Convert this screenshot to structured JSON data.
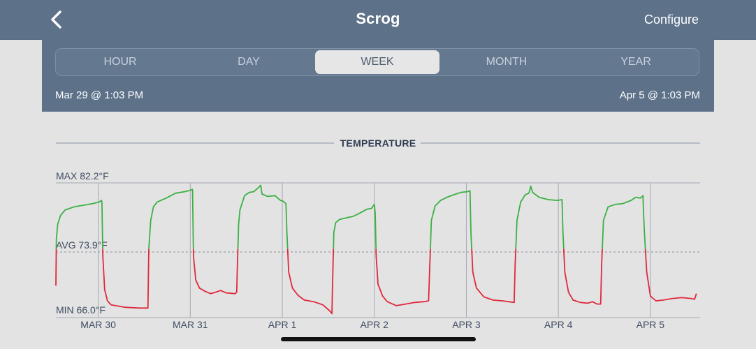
{
  "nav": {
    "title": "Scrog",
    "configure_label": "Configure",
    "back_icon": "chevron-left-icon"
  },
  "range": {
    "options": [
      "HOUR",
      "DAY",
      "WEEK",
      "MONTH",
      "YEAR"
    ],
    "selected": "WEEK",
    "start_label": "Mar 29 @ 1:03 PM",
    "end_label": "Apr 5 @ 1:03 PM"
  },
  "colors": {
    "header": "#5d7189",
    "above_avg_line": "#3cb043",
    "below_avg_line": "#e0283c",
    "background": "#e3e3e3"
  },
  "chart_data": {
    "type": "line",
    "title": "TEMPERATURE",
    "unit": "°F",
    "max_label": "MAX 82.2°F",
    "avg_label": "AVG 73.9°F",
    "min_label": "MIN 66.0°F",
    "ylim": [
      65.3,
      82.2
    ],
    "avg": 73.9,
    "x_ticks": [
      "MAR 30",
      "MAR 31",
      "APR 1",
      "APR 2",
      "APR 3",
      "APR 4",
      "APR 5"
    ],
    "x_range_days": [
      0,
      7
    ],
    "tick_positions_days": [
      0.46,
      1.46,
      2.46,
      3.46,
      4.46,
      5.46,
      6.46
    ],
    "series": [
      {
        "points": [
          [
            0.0,
            69.3
          ],
          [
            0.005,
            75.2
          ],
          [
            0.02,
            77.0
          ],
          [
            0.05,
            78.1
          ],
          [
            0.1,
            78.8
          ],
          [
            0.15,
            79.0
          ],
          [
            0.2,
            79.2
          ],
          [
            0.3,
            79.4
          ],
          [
            0.4,
            79.6
          ],
          [
            0.47,
            79.8
          ],
          [
            0.495,
            80.0
          ],
          [
            0.5,
            79.8
          ],
          [
            0.51,
            73.0
          ],
          [
            0.53,
            68.8
          ],
          [
            0.56,
            67.4
          ],
          [
            0.6,
            66.9
          ],
          [
            0.65,
            66.8
          ],
          [
            0.75,
            66.6
          ],
          [
            0.9,
            66.5
          ],
          [
            0.985,
            66.5
          ],
          [
            1.0,
            66.5
          ],
          [
            1.01,
            73.9
          ],
          [
            1.03,
            77.5
          ],
          [
            1.06,
            79.2
          ],
          [
            1.1,
            79.8
          ],
          [
            1.2,
            80.3
          ],
          [
            1.3,
            80.9
          ],
          [
            1.4,
            81.1
          ],
          [
            1.47,
            81.3
          ],
          [
            1.48,
            81.4
          ],
          [
            1.485,
            81.3
          ],
          [
            1.495,
            73.0
          ],
          [
            1.52,
            70.0
          ],
          [
            1.56,
            69.0
          ],
          [
            1.62,
            68.6
          ],
          [
            1.68,
            68.3
          ],
          [
            1.74,
            68.5
          ],
          [
            1.79,
            68.7
          ],
          [
            1.85,
            68.4
          ],
          [
            1.95,
            68.3
          ],
          [
            1.965,
            68.5
          ],
          [
            1.97,
            71.0
          ],
          [
            1.985,
            77.0
          ],
          [
            2.0,
            78.8
          ],
          [
            2.05,
            80.6
          ],
          [
            2.1,
            81.0
          ],
          [
            2.15,
            81.1
          ],
          [
            2.2,
            81.6
          ],
          [
            2.225,
            81.9
          ],
          [
            2.24,
            80.8
          ],
          [
            2.3,
            80.5
          ],
          [
            2.38,
            80.6
          ],
          [
            2.44,
            80.0
          ],
          [
            2.47,
            79.9
          ],
          [
            2.5,
            79.6
          ],
          [
            2.51,
            76.0
          ],
          [
            2.53,
            71.0
          ],
          [
            2.57,
            69.0
          ],
          [
            2.63,
            68.1
          ],
          [
            2.7,
            67.5
          ],
          [
            2.8,
            67.3
          ],
          [
            2.9,
            66.9
          ],
          [
            2.97,
            66.2
          ],
          [
            3.0,
            65.8
          ],
          [
            3.005,
            69.0
          ],
          [
            3.02,
            76.0
          ],
          [
            3.04,
            77.2
          ],
          [
            3.08,
            77.6
          ],
          [
            3.15,
            77.8
          ],
          [
            3.23,
            78.0
          ],
          [
            3.3,
            78.4
          ],
          [
            3.38,
            78.9
          ],
          [
            3.43,
            79.0
          ],
          [
            3.46,
            79.5
          ],
          [
            3.47,
            78.4
          ],
          [
            3.48,
            73.0
          ],
          [
            3.5,
            69.5
          ],
          [
            3.55,
            68.0
          ],
          [
            3.6,
            67.3
          ],
          [
            3.7,
            66.8
          ],
          [
            3.8,
            67.0
          ],
          [
            3.9,
            67.2
          ],
          [
            4.0,
            67.3
          ],
          [
            4.05,
            67.4
          ],
          [
            4.06,
            71.0
          ],
          [
            4.08,
            77.5
          ],
          [
            4.12,
            79.3
          ],
          [
            4.18,
            80.0
          ],
          [
            4.25,
            80.4
          ],
          [
            4.32,
            80.7
          ],
          [
            4.4,
            81.0
          ],
          [
            4.47,
            81.1
          ],
          [
            4.5,
            81.2
          ],
          [
            4.51,
            76.0
          ],
          [
            4.53,
            71.0
          ],
          [
            4.57,
            69.0
          ],
          [
            4.65,
            67.9
          ],
          [
            4.75,
            67.5
          ],
          [
            4.85,
            67.4
          ],
          [
            4.98,
            67.2
          ],
          [
            4.99,
            72.0
          ],
          [
            5.01,
            77.5
          ],
          [
            5.05,
            79.8
          ],
          [
            5.1,
            80.7
          ],
          [
            5.14,
            80.9
          ],
          [
            5.16,
            81.8
          ],
          [
            5.18,
            81.0
          ],
          [
            5.25,
            80.4
          ],
          [
            5.35,
            80.1
          ],
          [
            5.45,
            80.0
          ],
          [
            5.5,
            80.1
          ],
          [
            5.51,
            76.0
          ],
          [
            5.53,
            71.0
          ],
          [
            5.57,
            68.5
          ],
          [
            5.62,
            67.5
          ],
          [
            5.7,
            67.2
          ],
          [
            5.78,
            67.1
          ],
          [
            5.83,
            67.3
          ],
          [
            5.88,
            67.0
          ],
          [
            5.92,
            67.0
          ],
          [
            5.93,
            72.0
          ],
          [
            5.95,
            77.5
          ],
          [
            6.0,
            79.2
          ],
          [
            6.08,
            79.5
          ],
          [
            6.16,
            79.6
          ],
          [
            6.25,
            80.0
          ],
          [
            6.3,
            80.4
          ],
          [
            6.35,
            80.3
          ],
          [
            6.38,
            80.6
          ],
          [
            6.385,
            78.5
          ],
          [
            6.395,
            76.0
          ],
          [
            6.42,
            71.0
          ],
          [
            6.46,
            68.0
          ],
          [
            6.52,
            67.4
          ],
          [
            6.6,
            67.5
          ],
          [
            6.7,
            67.7
          ],
          [
            6.8,
            67.8
          ],
          [
            6.9,
            67.7
          ],
          [
            6.94,
            67.6
          ],
          [
            6.96,
            68.3
          ]
        ]
      }
    ]
  }
}
